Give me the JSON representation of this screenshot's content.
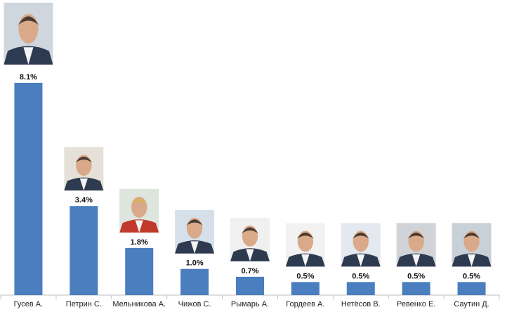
{
  "chart_data": {
    "type": "bar",
    "categories": [
      "Гусев А.",
      "Петрин С.",
      "Мельникова А.",
      "Чижов С.",
      "Рымарь А.",
      "Гордеев А.",
      "Нетёсов В.",
      "Ревенко Е.",
      "Саутин Д."
    ],
    "values": [
      8.1,
      3.4,
      1.8,
      1.0,
      0.7,
      0.5,
      0.5,
      0.5,
      0.5
    ],
    "value_labels": [
      "8.1%",
      "3.4%",
      "1.8%",
      "1.0%",
      "0.7%",
      "0.5%",
      "0.5%",
      "0.5%",
      "0.5%"
    ],
    "color": "#4a7ebf"
  }
}
